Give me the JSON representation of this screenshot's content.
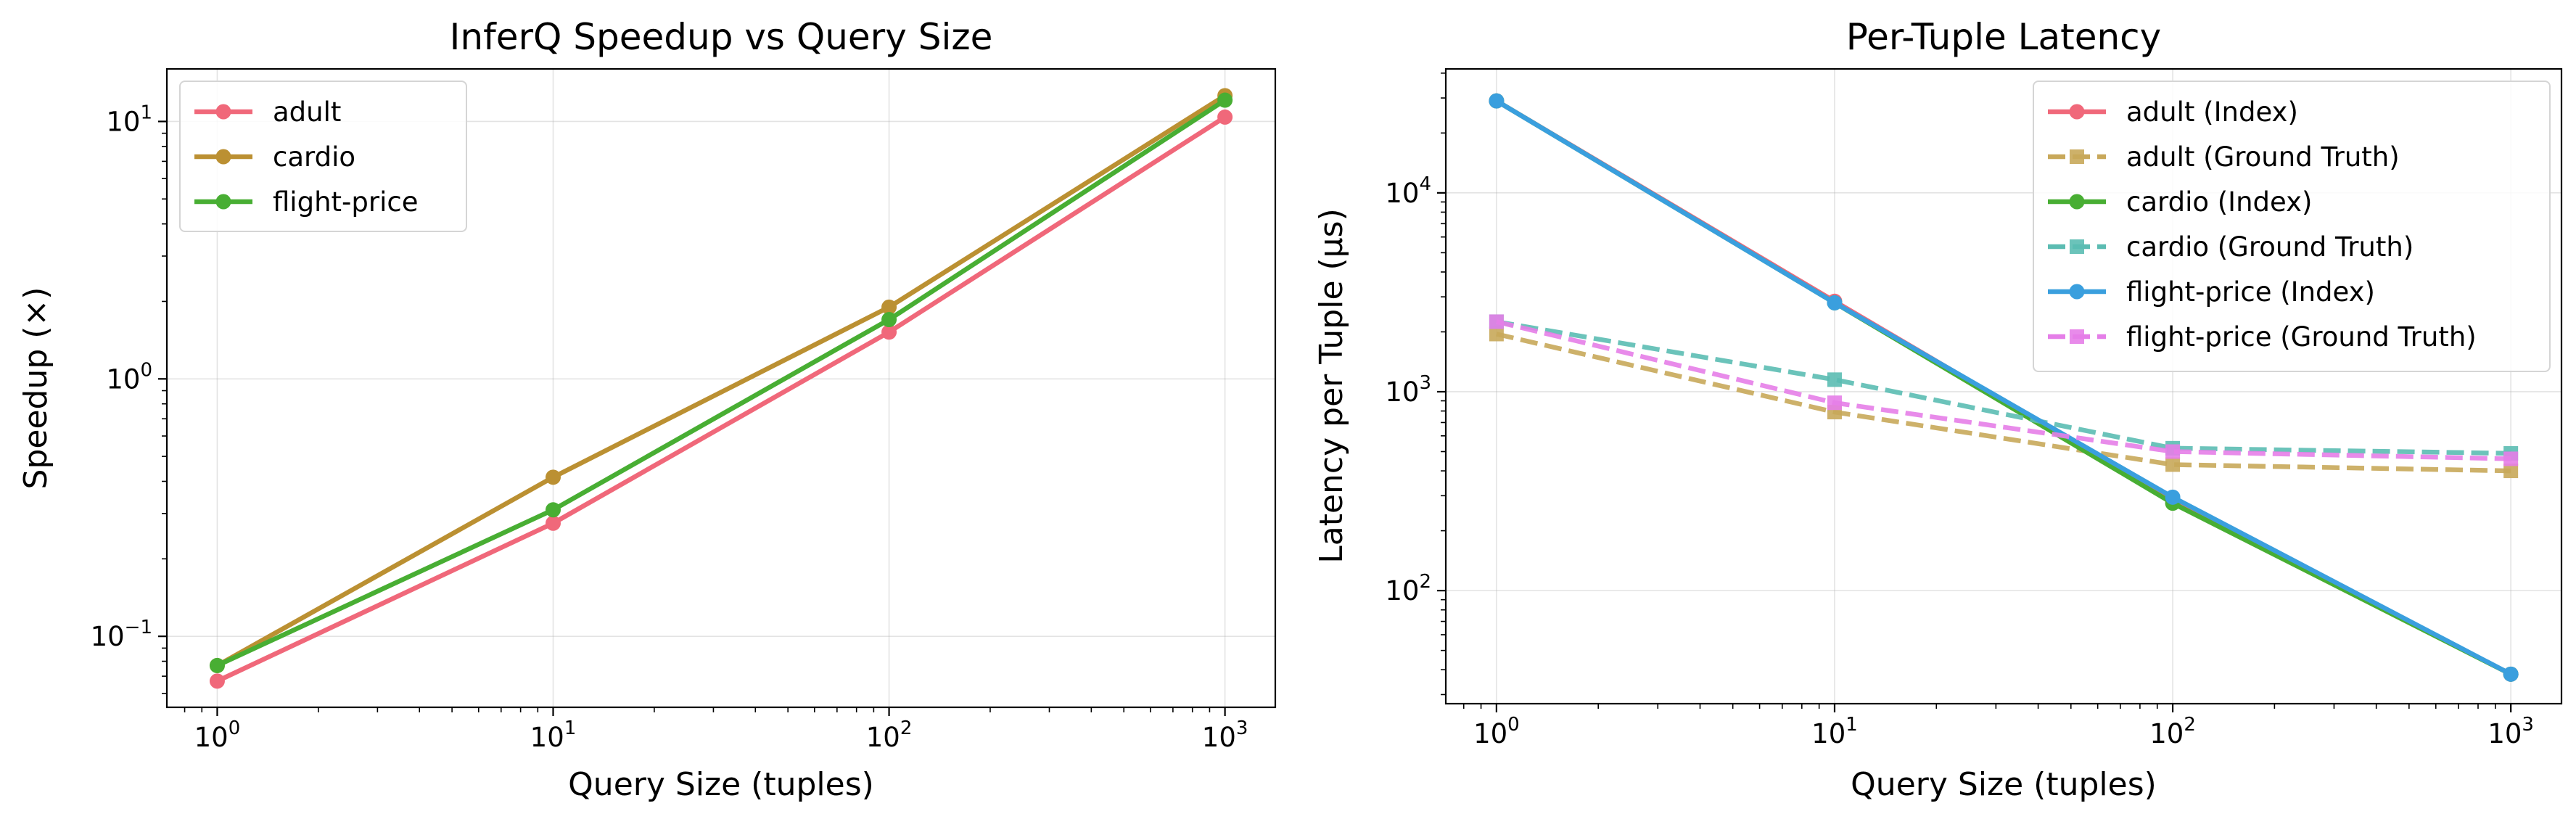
{
  "chart_data": [
    {
      "type": "line",
      "title": "InferQ Speedup vs Query Size",
      "xlabel": "Query Size (tuples)",
      "ylabel": "Speedup (×)",
      "xscale": "log",
      "yscale": "log",
      "xlim": [
        0.708,
        1412
      ],
      "ylim": [
        0.053,
        16
      ],
      "x": [
        1,
        10,
        100,
        1000
      ],
      "x_tick_labels": [
        "10^0",
        "10^1",
        "10^2",
        "10^3"
      ],
      "y_tick_labels": [
        "10^−1",
        "10^0",
        "10^1"
      ],
      "grid": true,
      "legend_position": "upper left",
      "series": [
        {
          "name": "adult",
          "values": [
            0.067,
            0.275,
            1.52,
            10.4
          ],
          "color": "#f0687a",
          "linestyle": "solid",
          "marker": "circle"
        },
        {
          "name": "cardio",
          "values": [
            0.077,
            0.415,
            1.9,
            12.6
          ],
          "color": "#bb9032",
          "linestyle": "solid",
          "marker": "circle"
        },
        {
          "name": "flight-price",
          "values": [
            0.077,
            0.31,
            1.7,
            12.1
          ],
          "color": "#48ae33",
          "linestyle": "solid",
          "marker": "circle"
        }
      ]
    },
    {
      "type": "line",
      "title": "Per-Tuple Latency",
      "xlabel": "Query Size (tuples)",
      "ylabel": "Latency per Tuple (μs)",
      "xscale": "log",
      "yscale": "log",
      "xlim": [
        0.708,
        1412
      ],
      "ylim": [
        27,
        42000
      ],
      "x": [
        1,
        10,
        100,
        1000
      ],
      "x_tick_labels": [
        "10^0",
        "10^1",
        "10^2",
        "10^3"
      ],
      "y_tick_labels": [
        "10^2",
        "10^3",
        "10^4"
      ],
      "grid": true,
      "legend_position": "upper right",
      "series": [
        {
          "name": "adult (Index)",
          "values": [
            29000,
            2850,
            285,
            38
          ],
          "color": "#f0687a",
          "linestyle": "solid",
          "marker": "circle"
        },
        {
          "name": "adult (Ground Truth)",
          "values": [
            1950,
            790,
            430,
            400
          ],
          "color": "#c8a85a",
          "linestyle": "dashed",
          "marker": "square"
        },
        {
          "name": "cardio (Index)",
          "values": [
            29000,
            2800,
            275,
            38
          ],
          "color": "#48ae33",
          "linestyle": "solid",
          "marker": "circle"
        },
        {
          "name": "cardio (Ground Truth)",
          "values": [
            2250,
            1150,
            520,
            490
          ],
          "color": "#5bbcb2",
          "linestyle": "dashed",
          "marker": "square"
        },
        {
          "name": "flight-price (Index)",
          "values": [
            29000,
            2800,
            295,
            38
          ],
          "color": "#3a9fde",
          "linestyle": "solid",
          "marker": "circle"
        },
        {
          "name": "flight-price (Ground Truth)",
          "values": [
            2250,
            880,
            500,
            460
          ],
          "color": "#e57ee8",
          "linestyle": "dashed",
          "marker": "square"
        }
      ]
    }
  ]
}
